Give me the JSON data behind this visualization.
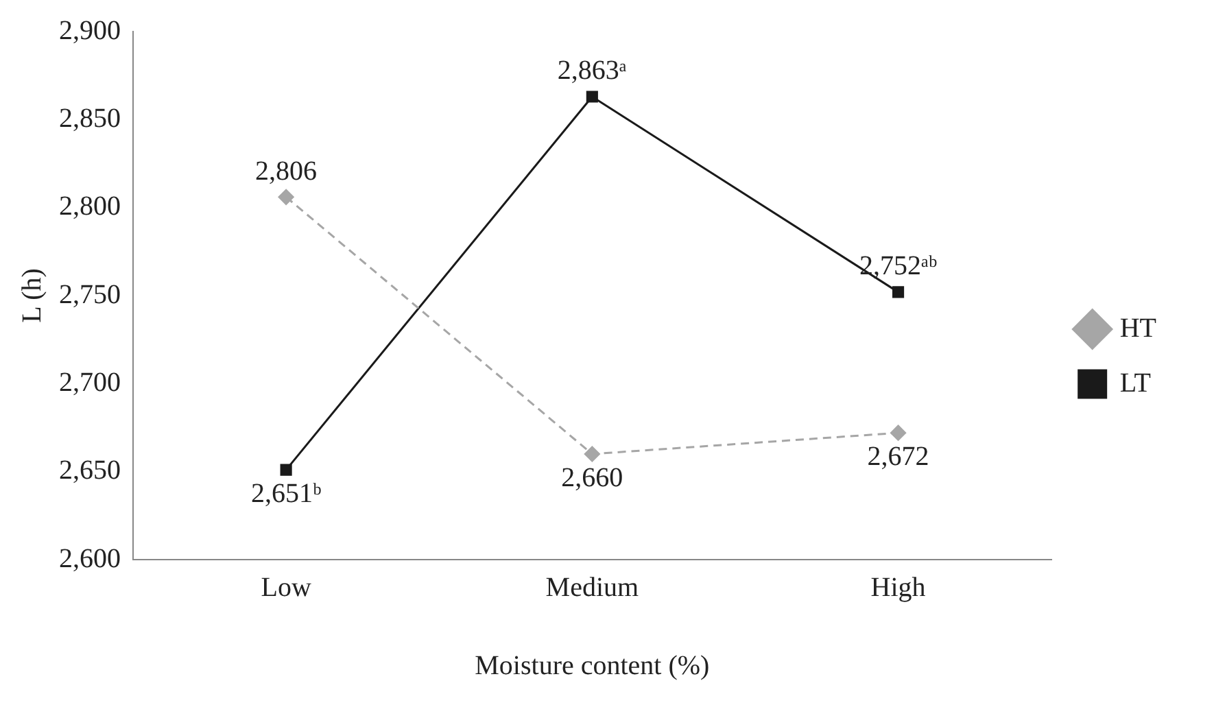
{
  "chart_data": {
    "type": "line",
    "xlabel": "Moisture content (%)",
    "ylabel": "L (h)",
    "categories": [
      "Low",
      "Medium",
      "High"
    ],
    "series": [
      {
        "name": "HT",
        "color": "#a6a6a6",
        "values": [
          2806,
          2660,
          2672
        ],
        "marker": "diamond",
        "line_style": "dashed",
        "value_labels": [
          "2,806",
          "2,660",
          "2,672"
        ]
      },
      {
        "name": "LT",
        "color": "#1a1a1a",
        "values": [
          2651,
          2863,
          2752
        ],
        "marker": "square",
        "line_style": "solid",
        "value_labels": [
          "2,651ᵇ",
          "2,863ᵃ",
          "2,752ᵃᵇ"
        ]
      }
    ],
    "ylim": [
      2600,
      2900
    ],
    "yticks": [
      {
        "value": 2600,
        "label": "2,600"
      },
      {
        "value": 2650,
        "label": "2,650"
      },
      {
        "value": 2700,
        "label": "2,700"
      },
      {
        "value": 2750,
        "label": "2,750"
      },
      {
        "value": 2800,
        "label": "2,800"
      },
      {
        "value": 2850,
        "label": "2,850"
      },
      {
        "value": 2900,
        "label": "2,900"
      }
    ],
    "grid": false,
    "legend": "right"
  }
}
